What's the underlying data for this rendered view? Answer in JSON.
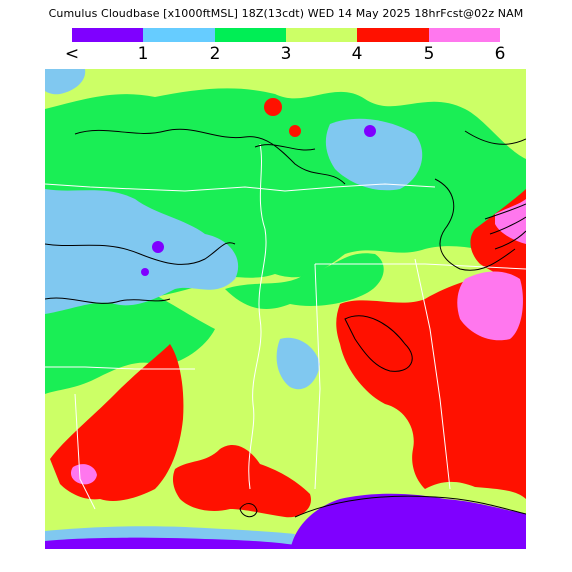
{
  "title": "Cumulus Cloudbase [x1000ftMSL] 18Z(13cdt) WED 14 May 2025 18hrFcst@02z NAM",
  "legend": {
    "colors": [
      "#7f00ff",
      "#66ccff",
      "#00ee55",
      "#ccff66",
      "#ff1100",
      "#ff77ee"
    ],
    "labels": [
      "<",
      "1",
      "2",
      "3",
      "4",
      "5",
      "6"
    ]
  },
  "map": {
    "fill_colors": {
      "purple": "#7f00ff",
      "blue": "#80c8f0",
      "green": "#1aee55",
      "yellow": "#ccff66",
      "red": "#ff1100",
      "pink": "#ff77ee"
    },
    "border_color": "#ffffff",
    "contour_color": "#000000"
  }
}
